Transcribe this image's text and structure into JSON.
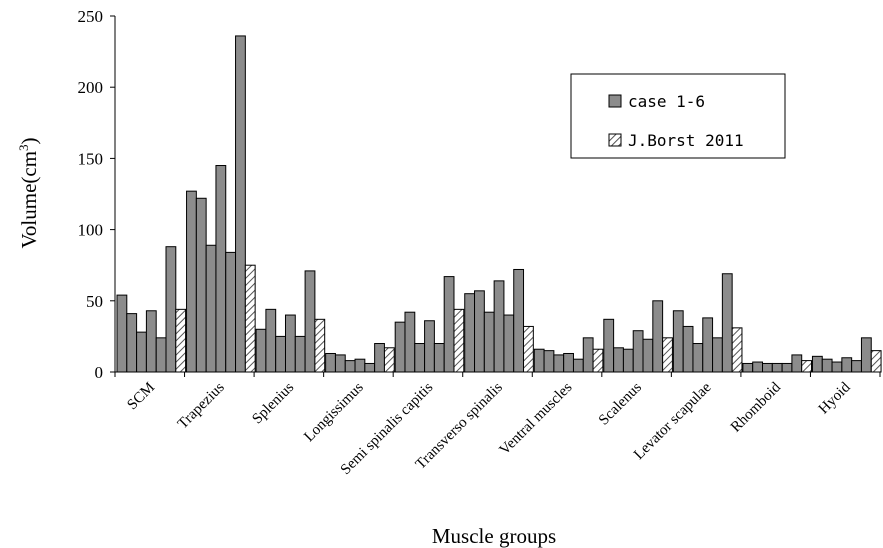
{
  "chart_data": {
    "type": "bar",
    "title": "",
    "xlabel": "Muscle groups",
    "ylabel": "Volume(cm",
    "ylabel_sup": "3",
    "ylabel_close": ")",
    "ylim": [
      0,
      250
    ],
    "yticks": [
      0,
      50,
      100,
      150,
      200,
      250
    ],
    "grid": false,
    "legend_position": "top-right",
    "categories": [
      "SCM",
      "Trapezius",
      "Splenius",
      "Longissimus",
      "Semi spinalis capitis",
      "Transverso spinalis",
      "Ventral muscles",
      "Scalenus",
      "Levator scapulae",
      "Rhomboid",
      "Hyoid"
    ],
    "series": [
      {
        "name": "case 1-6",
        "pattern": "solid",
        "color": "#8c8c8c",
        "values": [
          [
            54,
            41,
            28,
            43,
            24,
            88
          ],
          [
            127,
            122,
            89,
            145,
            84,
            236
          ],
          [
            30,
            44,
            25,
            40,
            25,
            71
          ],
          [
            13,
            12,
            8,
            9,
            6,
            20
          ],
          [
            35,
            42,
            20,
            36,
            20,
            67
          ],
          [
            55,
            57,
            42,
            64,
            40,
            72
          ],
          [
            16,
            15,
            12,
            13,
            9,
            24
          ],
          [
            37,
            17,
            16,
            29,
            23,
            50
          ],
          [
            43,
            32,
            20,
            38,
            24,
            69
          ],
          [
            6,
            7,
            6,
            6,
            6,
            12
          ],
          [
            11,
            9,
            7,
            10,
            8,
            24
          ]
        ]
      },
      {
        "name": "J.Borst 2011",
        "pattern": "hatched",
        "color": "#ffffff",
        "values": [
          44,
          75,
          37,
          17,
          44,
          32,
          16,
          24,
          31,
          8,
          15
        ]
      }
    ]
  }
}
